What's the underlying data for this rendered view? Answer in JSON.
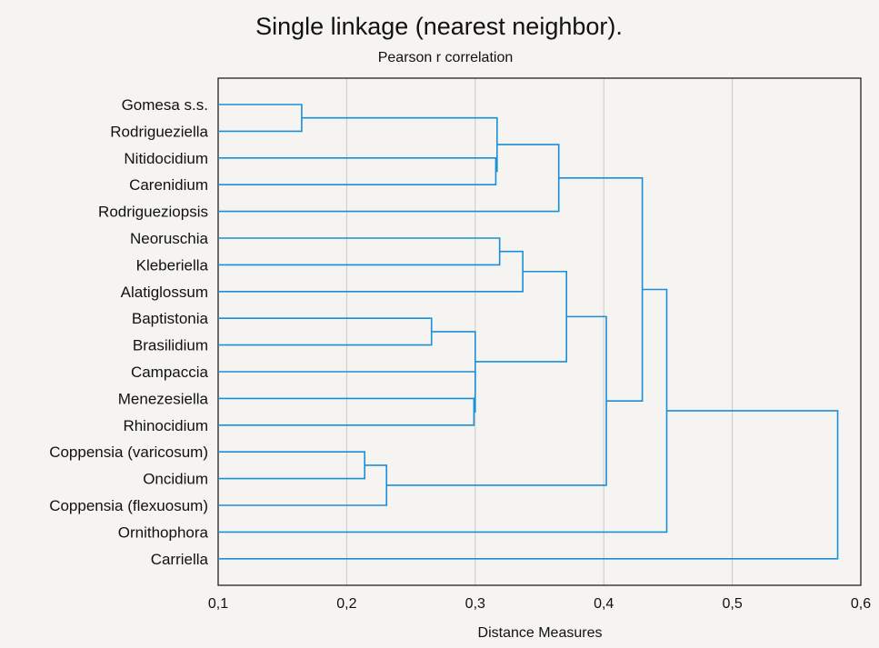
{
  "chart_data": {
    "type": "dendrogram",
    "title": "Single linkage (nearest neighbor).",
    "subtitle": "Pearson r correlation",
    "xlabel": "Distance Measures",
    "xlim": [
      0.1,
      0.6
    ],
    "xticks": [
      "0,1",
      "0,2",
      "0,3",
      "0,4",
      "0,5",
      "0,6"
    ],
    "xtick_values": [
      0.1,
      0.2,
      0.3,
      0.4,
      0.5,
      0.6
    ],
    "grid": true,
    "line_color": "#1a8fd6",
    "leaves": [
      "Gomesa s.s.",
      "Rodrigueziella",
      "Nitidocidium",
      "Carenidium",
      "Rodrigueziopsis",
      "Neoruschia",
      "Kleberiella",
      "Alatiglossum",
      "Baptistonia",
      "Brasilidium",
      "Campaccia",
      "Menezesiella",
      "Rhinocidium",
      "Coppensia (varicosum)",
      "Oncidium",
      "Coppensia (flexuosum)",
      "Ornithophora",
      "Carriella"
    ],
    "merges": [
      {
        "left": "Gomesa s.s.",
        "right": "Rodrigueziella",
        "height": 0.165
      },
      {
        "left": "Nitidocidium",
        "right": "Carenidium",
        "height": 0.316
      },
      {
        "left": "Gomesa s.s. + Rodrigueziella",
        "right": "Nitidocidium + Carenidium",
        "height": 0.317
      },
      {
        "left": "Gomesa s.s. … Carenidium",
        "right": "Rodrigueziopsis",
        "height": 0.365
      },
      {
        "left": "Neoruschia",
        "right": "Kleberiella",
        "height": 0.319
      },
      {
        "left": "Neoruschia + Kleberiella",
        "right": "Alatiglossum",
        "height": 0.337
      },
      {
        "left": "Baptistonia",
        "right": "Brasilidium",
        "height": 0.266
      },
      {
        "left": "Menezesiella",
        "right": "Rhinocidium",
        "height": 0.299
      },
      {
        "left": "Campaccia",
        "right": "Menezesiella + Rhinocidium",
        "height": 0.3
      },
      {
        "left": "Baptistonia + Brasilidium",
        "right": "Campaccia … Rhinocidium",
        "height": 0.3
      },
      {
        "left": "Neoruschia … Alatiglossum",
        "right": "Baptistonia … Rhinocidium",
        "height": 0.371
      },
      {
        "left": "Coppensia (varicosum)",
        "right": "Oncidium",
        "height": 0.214
      },
      {
        "left": "Coppensia (varicosum) + Oncidium",
        "right": "Coppensia (flexuosum)",
        "height": 0.231
      },
      {
        "left": "Neoruschia … Rhinocidium",
        "right": "Coppensia (varicosum) … Coppensia (flexuosum)",
        "height": 0.402
      },
      {
        "left": "Gomesa s.s. … Rodrigueziopsis",
        "right": "Neoruschia … Coppensia (flexuosum)",
        "height": 0.43
      },
      {
        "left": "Gomesa s.s. … Coppensia (flexuosum)",
        "right": "Ornithophora",
        "height": 0.449
      },
      {
        "left": "Gomesa s.s. … Ornithophora",
        "right": "Carriella",
        "height": 0.582
      }
    ]
  }
}
